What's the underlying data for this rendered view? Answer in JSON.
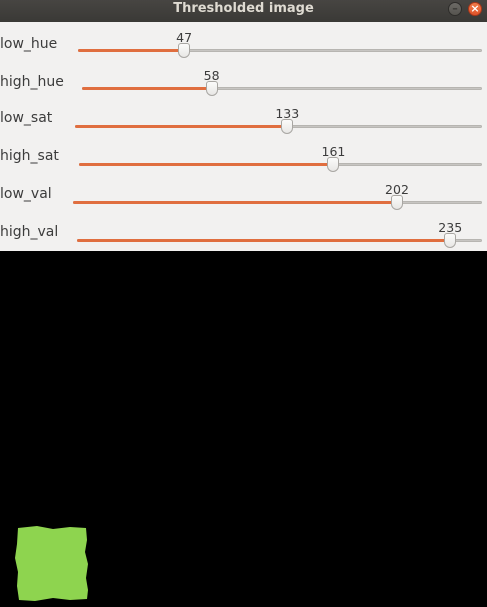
{
  "window": {
    "title": "Thresholded image"
  },
  "title_buttons": {
    "minimize_icon": "minus-icon",
    "close_icon": "close-icon",
    "minimize_glyph": "–",
    "close_glyph": "×"
  },
  "sliders": [
    {
      "name": "low_hue",
      "label": "low_hue",
      "value": 47,
      "value_text": "47",
      "max": 179
    },
    {
      "name": "high_hue",
      "label": "high_hue",
      "value": 58,
      "value_text": "58",
      "max": 179
    },
    {
      "name": "low_sat",
      "label": "low_sat",
      "value": 133,
      "value_text": "133",
      "max": 255
    },
    {
      "name": "high_sat",
      "label": "high_sat",
      "value": 161,
      "value_text": "161",
      "max": 255
    },
    {
      "name": "low_val",
      "label": "low_val",
      "value": 202,
      "value_text": "202",
      "max": 255
    },
    {
      "name": "high_val",
      "label": "high_val",
      "value": 235,
      "value_text": "235",
      "max": 255
    }
  ],
  "colors": {
    "accent": "#e06e3f",
    "panel_bg": "#f2f1f0",
    "image_bg": "#000000",
    "blob": "#8ed44f"
  }
}
